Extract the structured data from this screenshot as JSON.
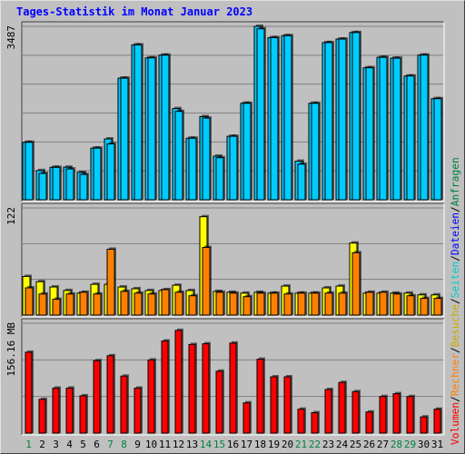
{
  "title": "Tages-Statistik im Monat Januar 2023",
  "colors": {
    "background": "#c0c0c0",
    "title": "#0000ff",
    "hits": "#00ccff",
    "files": "#00ccff",
    "pages": "#00cccc",
    "visits": "#ffff00",
    "sites": "#ff8000",
    "kbytes": "#ff0000",
    "weekday_label": "#000000",
    "weekend_label": "#008040",
    "bar_outline": "#000000"
  },
  "legend_right": [
    {
      "text": "Anfragen",
      "color": "#008040"
    },
    {
      "text": "/",
      "color": "#000000"
    },
    {
      "text": "Dateien",
      "color": "#0000ff"
    },
    {
      "text": "/",
      "color": "#000000"
    },
    {
      "text": "Seiten",
      "color": "#00cccc"
    },
    {
      "text": "/",
      "color": "#000000"
    },
    {
      "text": "Besuche",
      "color": "#ccaa00"
    },
    {
      "text": "/",
      "color": "#000000"
    },
    {
      "text": "Rechner",
      "color": "#ff8000"
    },
    {
      "text": "/",
      "color": "#000000"
    },
    {
      "text": "Volumen",
      "color": "#ff0000"
    }
  ],
  "chart_data": {
    "type": "bar",
    "title": "Tages-Statistik im Monat Januar 2023",
    "categories": [
      "1",
      "2",
      "3",
      "4",
      "5",
      "6",
      "7",
      "8",
      "9",
      "10",
      "11",
      "12",
      "13",
      "14",
      "15",
      "16",
      "17",
      "18",
      "19",
      "20",
      "21",
      "22",
      "23",
      "24",
      "25",
      "26",
      "27",
      "28",
      "29",
      "30",
      "31"
    ],
    "weekend_days": [
      "1",
      "7",
      "8",
      "14",
      "15",
      "21",
      "22",
      "28",
      "29"
    ],
    "panels": [
      {
        "name": "hits-files",
        "max_label": "3487",
        "ylim": [
          0,
          3487
        ],
        "series": [
          {
            "name": "Anfragen",
            "color": "#00ccff",
            "values": [
              1155,
              588,
              652,
              655,
              551,
              1038,
              1223,
              2445,
              3114,
              2853,
              2908,
              1833,
              1237,
              1672,
              877,
              1276,
              1940,
              3487,
              3260,
              3299,
              775,
              1940,
              3160,
              3231,
              3362,
              2654,
              2864,
              2847,
              2489,
              2909,
              2032
            ]
          },
          {
            "name": "Dateien",
            "color": "#00ccff",
            "values": [
              1155,
              529,
              652,
              620,
              509,
              1038,
              1123,
              2445,
              3114,
              2853,
              2908,
              1777,
              1237,
              1642,
              846,
              1276,
              1940,
              3438,
              3260,
              3299,
              715,
              1940,
              3160,
              3231,
              3362,
              2654,
              2864,
              2847,
              2489,
              2909,
              2032
            ]
          }
        ]
      },
      {
        "name": "visits-sites",
        "max_label": "122",
        "ylim": [
          0,
          122
        ],
        "series": [
          {
            "name": "Besuche",
            "color": "#ffff00",
            "values": [
              44,
              38,
              32,
              28,
              25,
              35,
              35,
              32,
              30,
              28,
              28,
              34,
              28,
              112,
              27,
              26,
              25,
              26,
              25,
              33,
              25,
              25,
              31,
              33,
              82,
              25,
              25,
              25,
              25,
              23,
              23
            ]
          },
          {
            "name": "Rechner",
            "color": "#ff8000",
            "values": [
              31,
              24,
              18,
              24,
              26,
              24,
              75,
              27,
              25,
              24,
              29,
              26,
              22,
              77,
              26,
              25,
              21,
              25,
              25,
              24,
              25,
              25,
              25,
              25,
              71,
              26,
              26,
              24,
              22,
              19,
              19
            ]
          }
        ]
      },
      {
        "name": "kbytes",
        "max_label": "156.16 MB",
        "ylim": [
          0,
          156.16
        ],
        "series": [
          {
            "name": "Volumen",
            "color": "#ff0000",
            "values": [
              115,
              48,
              64,
              64,
              53,
              103,
              110,
              81,
              64,
              104,
              131,
              146,
              126,
              127,
              88,
              128,
              43,
              105,
              80,
              80,
              34,
              29,
              62,
              72,
              59,
              30,
              52,
              56,
              52,
              23,
              34
            ]
          }
        ]
      }
    ]
  }
}
